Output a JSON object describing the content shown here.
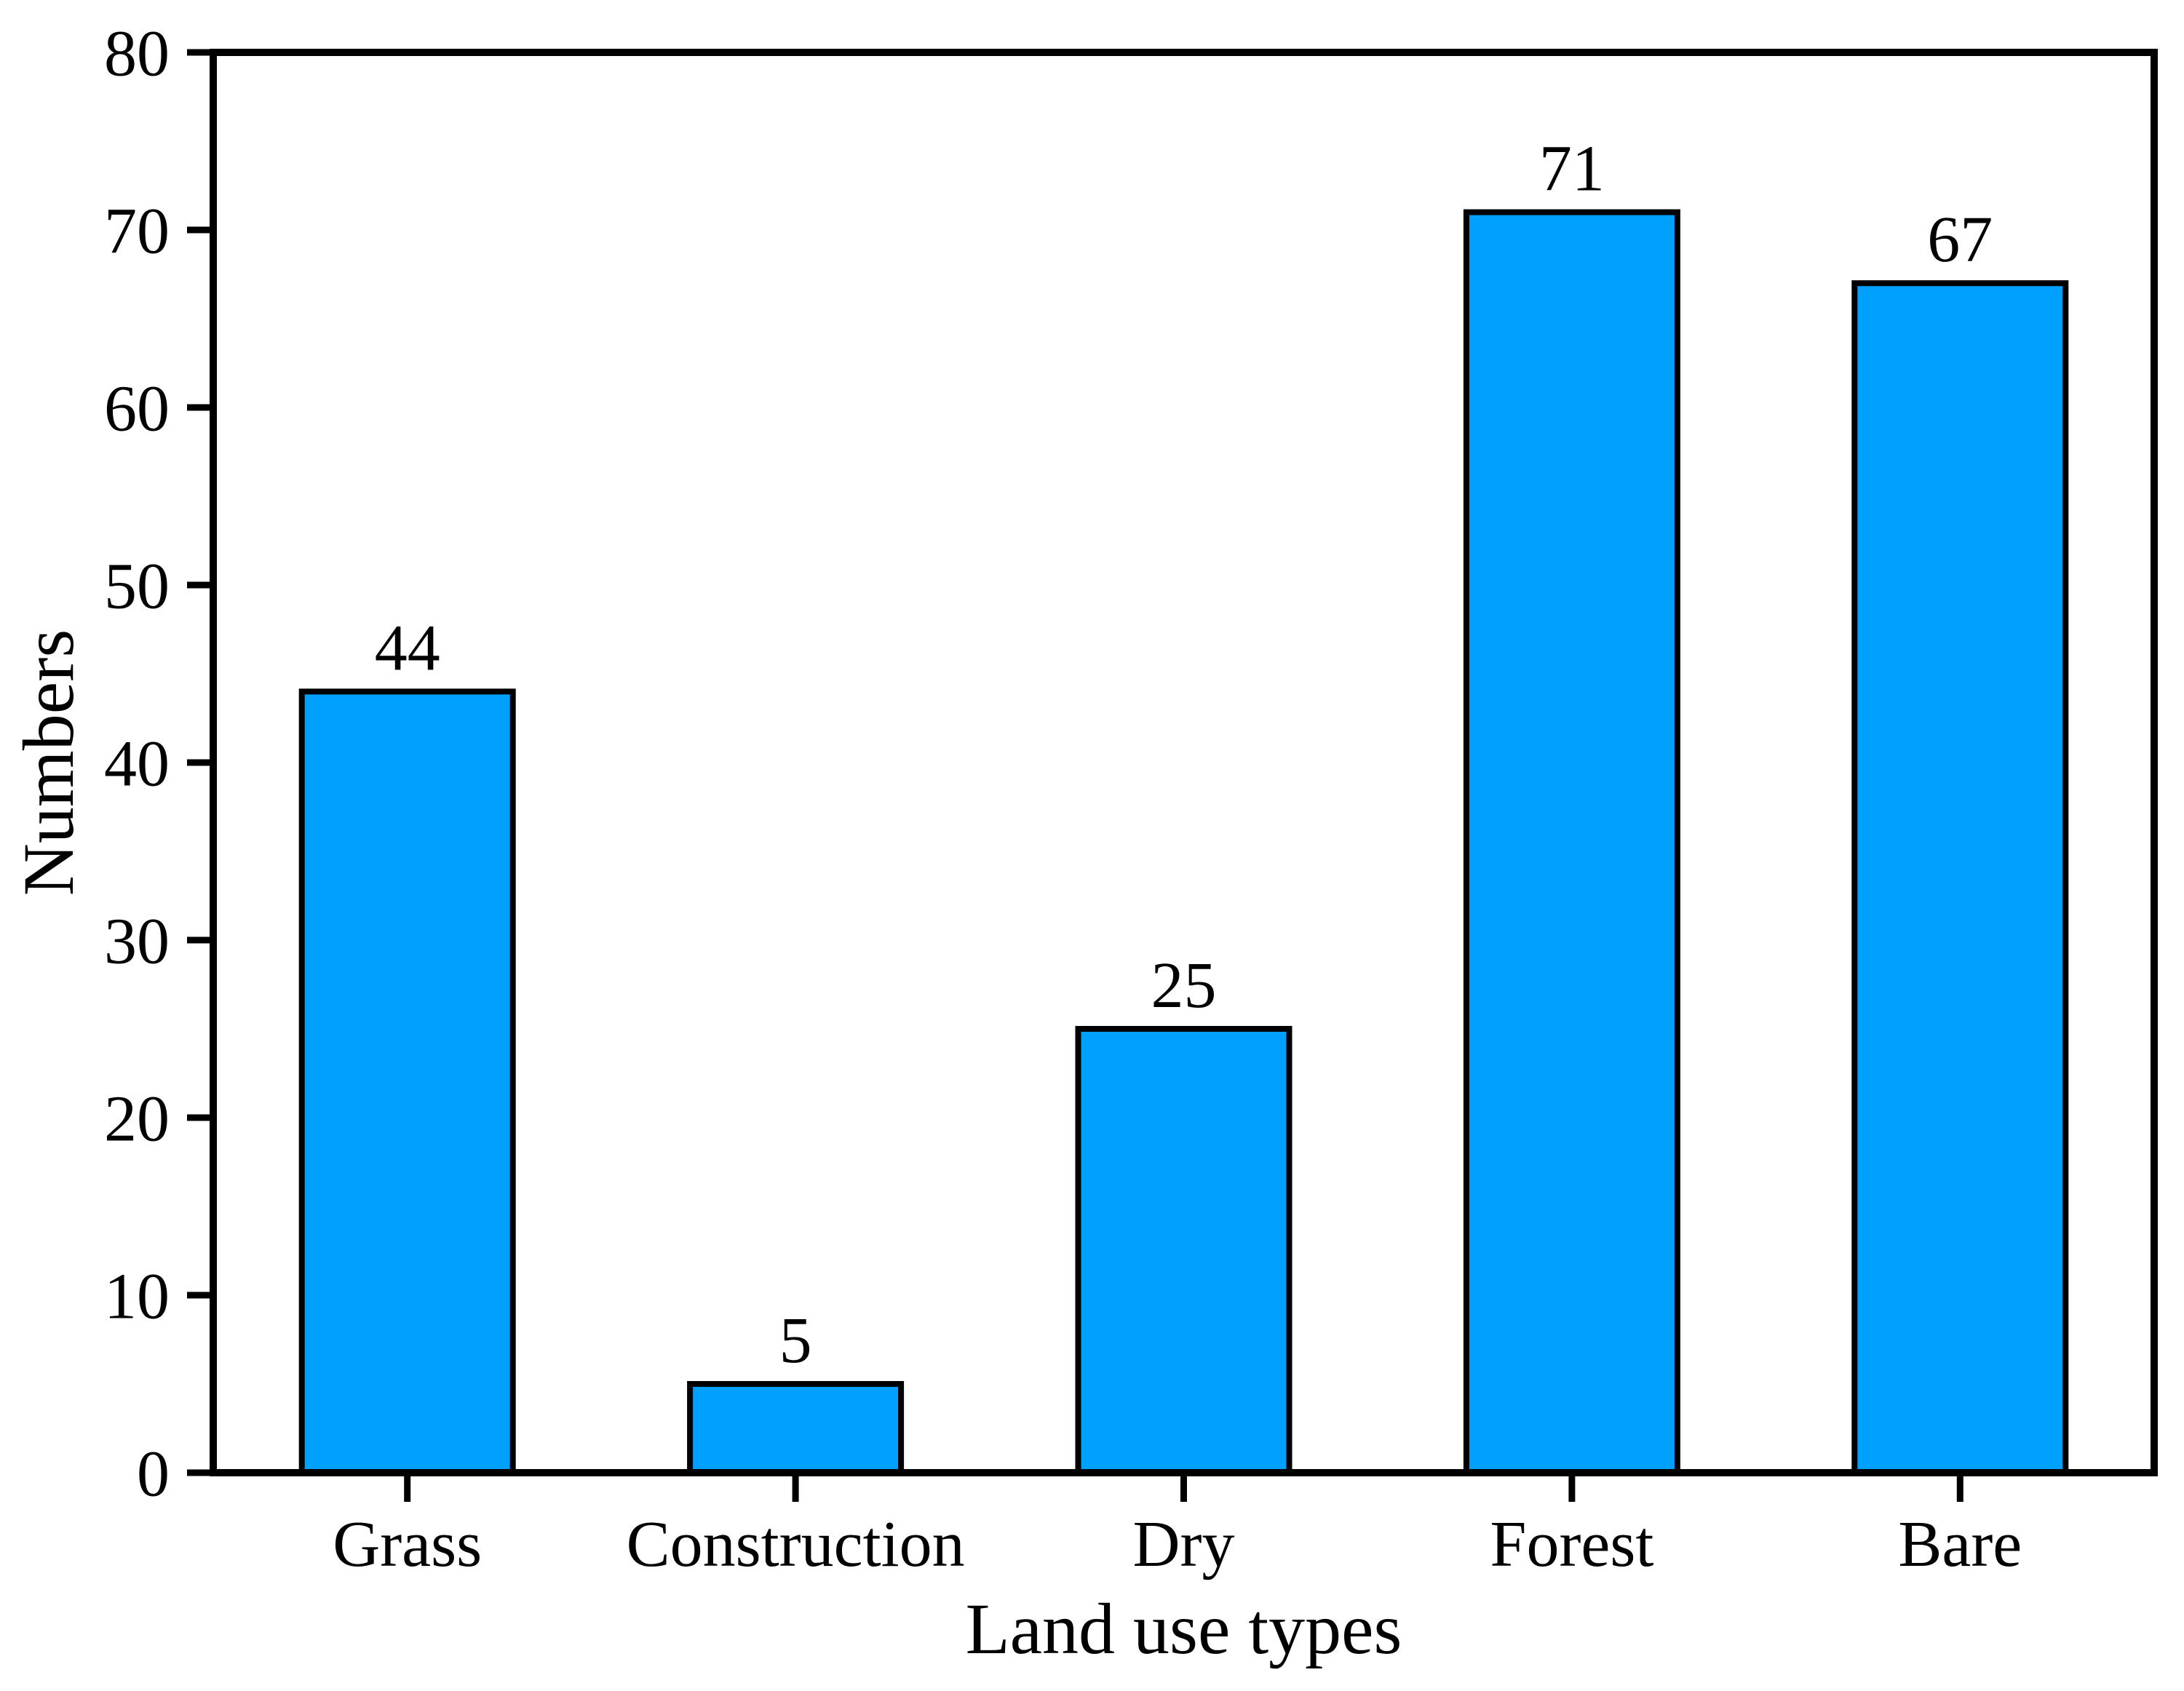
{
  "chart_data": {
    "type": "bar",
    "categories": [
      "Grass",
      "Construction",
      "Dry",
      "Forest",
      "Bare"
    ],
    "values": [
      44,
      5,
      25,
      71,
      67
    ],
    "value_labels": [
      "44",
      "5",
      "25",
      "71",
      "67"
    ],
    "title": "",
    "xlabel": "Land use types",
    "ylabel": "Numbers",
    "ylim": [
      0,
      80
    ],
    "ytick_step": 10,
    "ytick_labels": [
      "0",
      "10",
      "20",
      "30",
      "40",
      "50",
      "60",
      "70",
      "80"
    ],
    "grid": false,
    "legend": null,
    "frame": "full-box",
    "tick_direction": "out",
    "colors": {
      "bar_fill": "#00A0FF",
      "bar_edge": "#000000",
      "axis": "#000000",
      "text": "#000000",
      "background": "#FFFFFF"
    }
  }
}
